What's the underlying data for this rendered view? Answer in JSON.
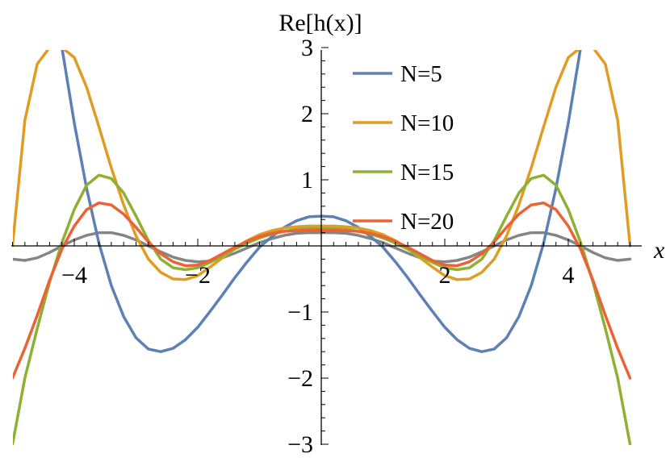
{
  "chart_data": {
    "type": "line",
    "xlabel": "x",
    "ylabel": "Re[h(x)]",
    "xlim": [
      -5,
      5
    ],
    "ylim": [
      -3,
      3
    ],
    "x_ticks": [
      -4,
      -2,
      2,
      4
    ],
    "x_tick_labels": [
      "−4",
      "−2",
      "2",
      "4"
    ],
    "y_ticks": [
      -3,
      -2,
      -1,
      1,
      2,
      3
    ],
    "y_tick_labels": [
      "−3",
      "−2",
      "−1",
      "1",
      "2",
      "3"
    ],
    "grid": false,
    "legend_position": "top-right",
    "series": [
      {
        "name": "N=5",
        "color": "#5e81b5",
        "x": [
          -4.2,
          -4.0,
          -3.8,
          -3.6,
          -3.4,
          -3.2,
          -3.0,
          -2.8,
          -2.6,
          -2.4,
          -2.2,
          -2.0,
          -1.8,
          -1.6,
          -1.4,
          -1.2,
          -1.0,
          -0.8,
          -0.6,
          -0.4,
          -0.2,
          0.0,
          0.2,
          0.4,
          0.6,
          0.8,
          1.0,
          1.2,
          1.4,
          1.6,
          1.8,
          2.0,
          2.2,
          2.4,
          2.6,
          2.8,
          3.0,
          3.2,
          3.4,
          3.6,
          3.8,
          4.0,
          4.2
        ],
        "y": [
          3.0,
          1.86,
          0.87,
          0.04,
          -0.6,
          -1.07,
          -1.39,
          -1.56,
          -1.6,
          -1.55,
          -1.42,
          -1.23,
          -0.99,
          -0.74,
          -0.48,
          -0.24,
          -0.02,
          0.14,
          0.28,
          0.38,
          0.44,
          0.45,
          0.44,
          0.38,
          0.28,
          0.14,
          -0.02,
          -0.24,
          -0.48,
          -0.74,
          -0.99,
          -1.23,
          -1.42,
          -1.55,
          -1.6,
          -1.56,
          -1.39,
          -1.07,
          -0.6,
          0.04,
          0.87,
          1.86,
          3.0
        ]
      },
      {
        "name": "N=10",
        "color": "#e19c24",
        "x": [
          -5.0,
          -4.8,
          -4.6,
          -4.4,
          -4.2,
          -4.0,
          -3.8,
          -3.6,
          -3.4,
          -3.2,
          -3.0,
          -2.8,
          -2.6,
          -2.4,
          -2.2,
          -2.0,
          -1.8,
          -1.6,
          -1.4,
          -1.2,
          -1.0,
          -0.8,
          -0.6,
          -0.4,
          -0.2,
          0.0,
          0.2,
          0.4,
          0.6,
          0.8,
          1.0,
          1.2,
          1.4,
          1.6,
          1.8,
          2.0,
          2.2,
          2.4,
          2.6,
          2.8,
          3.0,
          3.2,
          3.4,
          3.6,
          3.8,
          4.0,
          4.2,
          4.4,
          4.6,
          4.8,
          5.0
        ],
        "y": [
          0.0,
          1.9,
          2.75,
          3.0,
          3.0,
          2.85,
          2.4,
          1.8,
          1.18,
          0.62,
          0.15,
          -0.2,
          -0.4,
          -0.5,
          -0.51,
          -0.45,
          -0.32,
          -0.18,
          -0.04,
          0.08,
          0.17,
          0.23,
          0.27,
          0.29,
          0.3,
          0.3,
          0.3,
          0.29,
          0.27,
          0.23,
          0.17,
          0.08,
          -0.04,
          -0.18,
          -0.32,
          -0.45,
          -0.51,
          -0.5,
          -0.4,
          -0.2,
          0.15,
          0.62,
          1.18,
          1.8,
          2.4,
          2.85,
          3.0,
          3.0,
          2.75,
          1.9,
          0.0
        ]
      },
      {
        "name": "N=15",
        "color": "#8fb032",
        "x": [
          -5.0,
          -4.8,
          -4.6,
          -4.4,
          -4.2,
          -4.0,
          -3.8,
          -3.6,
          -3.4,
          -3.2,
          -3.0,
          -2.8,
          -2.6,
          -2.4,
          -2.2,
          -2.0,
          -1.8,
          -1.6,
          -1.4,
          -1.2,
          -1.0,
          -0.8,
          -0.6,
          -0.4,
          -0.2,
          0.0,
          0.2,
          0.4,
          0.6,
          0.8,
          1.0,
          1.2,
          1.4,
          1.6,
          1.8,
          2.0,
          2.2,
          2.4,
          2.6,
          2.8,
          3.0,
          3.2,
          3.4,
          3.6,
          3.8,
          4.0,
          4.2,
          4.4,
          4.6,
          4.8,
          5.0
        ],
        "y": [
          -3.0,
          -2.0,
          -1.25,
          -0.55,
          0.05,
          0.55,
          0.92,
          1.07,
          1.02,
          0.8,
          0.45,
          0.08,
          -0.2,
          -0.33,
          -0.36,
          -0.33,
          -0.25,
          -0.15,
          -0.05,
          0.04,
          0.12,
          0.18,
          0.22,
          0.25,
          0.26,
          0.26,
          0.26,
          0.25,
          0.22,
          0.18,
          0.12,
          0.04,
          -0.05,
          -0.15,
          -0.25,
          -0.33,
          -0.36,
          -0.33,
          -0.2,
          0.08,
          0.45,
          0.8,
          1.02,
          1.07,
          0.92,
          0.55,
          0.05,
          -0.55,
          -1.25,
          -2.0,
          -3.0
        ]
      },
      {
        "name": "N=20",
        "color": "#eb6235",
        "x": [
          -5.0,
          -4.8,
          -4.6,
          -4.4,
          -4.2,
          -4.0,
          -3.8,
          -3.6,
          -3.4,
          -3.2,
          -3.0,
          -2.8,
          -2.6,
          -2.4,
          -2.2,
          -2.0,
          -1.8,
          -1.6,
          -1.4,
          -1.2,
          -1.0,
          -0.8,
          -0.6,
          -0.4,
          -0.2,
          0.0,
          0.2,
          0.4,
          0.6,
          0.8,
          1.0,
          1.2,
          1.4,
          1.6,
          1.8,
          2.0,
          2.2,
          2.4,
          2.6,
          2.8,
          3.0,
          3.2,
          3.4,
          3.6,
          3.8,
          4.0,
          4.2,
          4.4,
          4.6,
          4.8,
          5.0
        ],
        "y": [
          -2.0,
          -1.55,
          -1.05,
          -0.52,
          -0.05,
          0.3,
          0.55,
          0.65,
          0.62,
          0.48,
          0.28,
          0.06,
          -0.12,
          -0.24,
          -0.3,
          -0.29,
          -0.22,
          -0.12,
          -0.02,
          0.07,
          0.14,
          0.19,
          0.22,
          0.23,
          0.24,
          0.24,
          0.24,
          0.23,
          0.22,
          0.19,
          0.14,
          0.07,
          -0.02,
          -0.12,
          -0.22,
          -0.29,
          -0.3,
          -0.24,
          -0.12,
          0.06,
          0.28,
          0.48,
          0.62,
          0.65,
          0.55,
          0.3,
          -0.05,
          -0.52,
          -1.05,
          -1.55,
          -2.0
        ]
      },
      {
        "name": "",
        "color": "#858585",
        "x": [
          -5.0,
          -4.8,
          -4.6,
          -4.4,
          -4.2,
          -4.0,
          -3.8,
          -3.6,
          -3.4,
          -3.2,
          -3.0,
          -2.8,
          -2.6,
          -2.4,
          -2.2,
          -2.0,
          -1.8,
          -1.6,
          -1.4,
          -1.2,
          -1.0,
          -0.8,
          -0.6,
          -0.4,
          -0.2,
          0.0,
          0.2,
          0.4,
          0.6,
          0.8,
          1.0,
          1.2,
          1.4,
          1.6,
          1.8,
          2.0,
          2.2,
          2.4,
          2.6,
          2.8,
          3.0,
          3.2,
          3.4,
          3.6,
          3.8,
          4.0,
          4.2,
          4.4,
          4.6,
          4.8,
          5.0
        ],
        "y": [
          -0.2,
          -0.22,
          -0.18,
          -0.1,
          0.0,
          0.09,
          0.16,
          0.2,
          0.2,
          0.16,
          0.09,
          0.0,
          -0.09,
          -0.17,
          -0.22,
          -0.24,
          -0.23,
          -0.18,
          -0.11,
          -0.03,
          0.05,
          0.11,
          0.16,
          0.19,
          0.2,
          0.2,
          0.2,
          0.19,
          0.16,
          0.11,
          0.05,
          -0.03,
          -0.11,
          -0.18,
          -0.23,
          -0.24,
          -0.22,
          -0.17,
          -0.09,
          0.0,
          0.09,
          0.16,
          0.2,
          0.2,
          0.16,
          0.09,
          0.0,
          -0.1,
          -0.18,
          -0.22,
          -0.2
        ]
      }
    ]
  }
}
